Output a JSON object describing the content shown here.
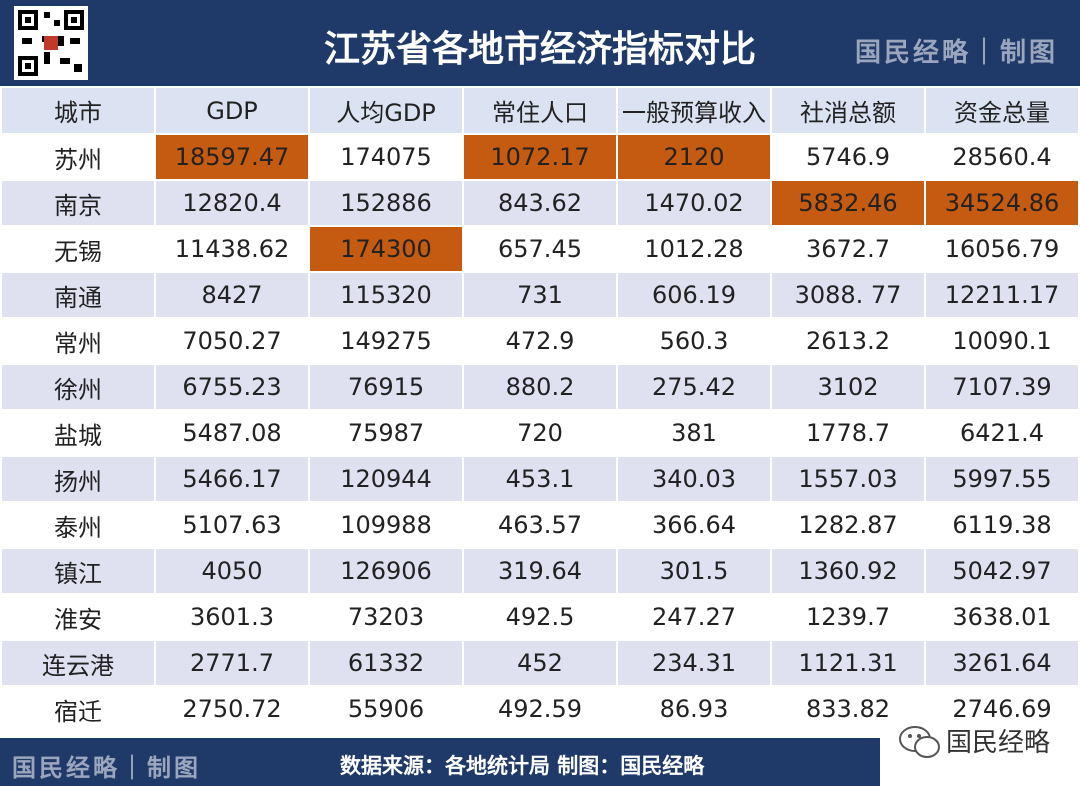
{
  "header": {
    "title": "江苏省各地市经济指标对比",
    "brand": "国民经略｜制图"
  },
  "table": {
    "columns": [
      "城市",
      "GDP",
      "人均GDP",
      "常住人口",
      "一般预算收入",
      "社消总额",
      "资金总量"
    ],
    "rows": [
      [
        "苏州",
        "18597.47",
        "174075",
        "1072.17",
        "2120",
        "5746.9",
        "28560.4"
      ],
      [
        "南京",
        "12820.4",
        "152886",
        "843.62",
        "1470.02",
        "5832.46",
        "34524.86"
      ],
      [
        "无锡",
        "11438.62",
        "174300",
        "657.45",
        "1012.28",
        "3672.7",
        "16056.79"
      ],
      [
        "南通",
        "8427",
        "115320",
        "731",
        "606.19",
        "3088. 77",
        "12211.17"
      ],
      [
        "常州",
        "7050.27",
        "149275",
        "472.9",
        "560.3",
        "2613.2",
        "10090.1"
      ],
      [
        "徐州",
        "6755.23",
        "76915",
        "880.2",
        "275.42",
        "3102",
        "7107.39"
      ],
      [
        "盐城",
        "5487.08",
        "75987",
        "720",
        "381",
        "1778.7",
        "6421.4"
      ],
      [
        "扬州",
        "5466.17",
        "120944",
        "453.1",
        "340.03",
        "1557.03",
        "5997.55"
      ],
      [
        "泰州",
        "5107.63",
        "109988",
        "463.57",
        "366.64",
        "1282.87",
        "6119.38"
      ],
      [
        "镇江",
        "4050",
        "126906",
        "319.64",
        "301.5",
        "1360.92",
        "5042.97"
      ],
      [
        "淮安",
        "3601.3",
        "73203",
        "492.5",
        "247.27",
        "1239.7",
        "3638.01"
      ],
      [
        "连云港",
        "2771.7",
        "61332",
        "452",
        "234.31",
        "1121.31",
        "3261.64"
      ],
      [
        "宿迁",
        "2750.72",
        "55906",
        "492.59",
        "86.93",
        "833.82",
        "2746.69"
      ]
    ]
  },
  "footer": {
    "brand": "国民经略｜制图",
    "source": "数据来源：各地统计局 制图：国民经略",
    "wechat": "国民经略"
  }
}
